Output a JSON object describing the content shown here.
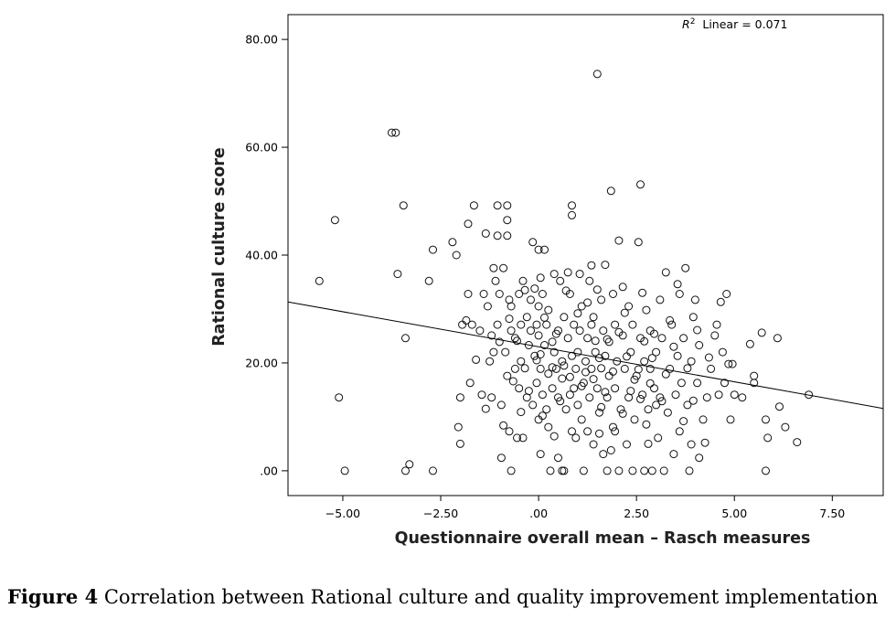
{
  "chart_data": {
    "type": "scatter",
    "title": "",
    "xlabel": "Questionnaire overall mean – Rasch measures",
    "ylabel": "Rational culture score",
    "xlim": [
      -6.4,
      8.8
    ],
    "ylim": [
      -4.6,
      84.6
    ],
    "x_ticks": [
      -5,
      -2.5,
      0,
      2.5,
      5,
      7.5
    ],
    "x_tick_labels": [
      "−5.00",
      "−2.50",
      ".00",
      "2.50",
      "5.00",
      "7.50"
    ],
    "y_ticks": [
      0,
      20,
      40,
      60,
      80
    ],
    "y_tick_labels": [
      ".00",
      "20.00",
      "40.00",
      "60.00",
      "80.00"
    ],
    "grid": false,
    "fit_line": {
      "label_prefix": "R",
      "label_sup": "2",
      "label_rest": "  Linear = 0.071",
      "intercept": 23.0,
      "slope": -1.3
    },
    "points": [
      [
        -5.6,
        35.2
      ],
      [
        -5.2,
        46.5
      ],
      [
        -5.1,
        13.6
      ],
      [
        -4.95,
        0.0
      ],
      [
        -3.75,
        62.7
      ],
      [
        -3.65,
        62.7
      ],
      [
        -3.6,
        36.5
      ],
      [
        -3.45,
        49.2
      ],
      [
        -3.4,
        24.6
      ],
      [
        -3.4,
        0.0
      ],
      [
        -3.3,
        1.2
      ],
      [
        -2.8,
        35.2
      ],
      [
        -2.7,
        41.0
      ],
      [
        -2.7,
        0.0
      ],
      [
        -2.2,
        42.4
      ],
      [
        -2.1,
        40.0
      ],
      [
        -2.05,
        8.1
      ],
      [
        -2.0,
        5.0
      ],
      [
        -2.0,
        13.6
      ],
      [
        -1.95,
        27.1
      ],
      [
        -1.85,
        27.9
      ],
      [
        -1.8,
        45.8
      ],
      [
        -1.8,
        32.8
      ],
      [
        -1.75,
        16.3
      ],
      [
        -1.7,
        27.1
      ],
      [
        -1.65,
        49.2
      ],
      [
        -1.5,
        26.0
      ],
      [
        -1.45,
        14.1
      ],
      [
        -1.4,
        32.8
      ],
      [
        -1.35,
        44.0
      ],
      [
        -1.3,
        30.5
      ],
      [
        -1.25,
        20.3
      ],
      [
        -1.2,
        25.1
      ],
      [
        -1.2,
        13.6
      ],
      [
        -1.15,
        22.0
      ],
      [
        -1.1,
        35.2
      ],
      [
        -1.05,
        27.1
      ],
      [
        -1.05,
        49.2
      ],
      [
        -1.05,
        43.6
      ],
      [
        -1.0,
        23.9
      ],
      [
        -1.0,
        32.8
      ],
      [
        -0.95,
        12.2
      ],
      [
        -0.95,
        2.4
      ],
      [
        -0.9,
        37.6
      ],
      [
        -0.85,
        22.0
      ],
      [
        -0.8,
        17.6
      ],
      [
        -0.8,
        46.5
      ],
      [
        -0.8,
        43.6
      ],
      [
        -0.8,
        49.2
      ],
      [
        -0.75,
        31.7
      ],
      [
        -0.75,
        7.3
      ],
      [
        -0.7,
        26.0
      ],
      [
        -0.7,
        30.5
      ],
      [
        -0.7,
        0.0
      ],
      [
        -0.6,
        18.9
      ],
      [
        -0.6,
        24.6
      ],
      [
        -0.55,
        6.1
      ],
      [
        -0.5,
        32.8
      ],
      [
        -0.5,
        15.3
      ],
      [
        -0.45,
        20.3
      ],
      [
        -0.45,
        27.1
      ],
      [
        -0.4,
        35.2
      ],
      [
        -0.4,
        6.1
      ],
      [
        -0.35,
        19.0
      ],
      [
        -0.3,
        13.6
      ],
      [
        -0.3,
        28.5
      ],
      [
        -0.25,
        23.3
      ],
      [
        -0.2,
        31.7
      ],
      [
        -0.2,
        26.0
      ],
      [
        -0.15,
        12.2
      ],
      [
        -0.15,
        42.4
      ],
      [
        -0.1,
        21.3
      ],
      [
        -0.1,
        33.8
      ],
      [
        -0.05,
        16.3
      ],
      [
        -0.05,
        27.1
      ],
      [
        0.0,
        9.5
      ],
      [
        0.0,
        41.0
      ],
      [
        0.0,
        30.5
      ],
      [
        0.0,
        25.1
      ],
      [
        0.05,
        3.1
      ],
      [
        0.05,
        18.9
      ],
      [
        0.05,
        21.6
      ],
      [
        0.1,
        14.1
      ],
      [
        0.1,
        32.8
      ],
      [
        0.15,
        41.0
      ],
      [
        0.15,
        23.3
      ],
      [
        0.2,
        27.1
      ],
      [
        0.2,
        11.4
      ],
      [
        0.25,
        8.1
      ],
      [
        0.25,
        29.8
      ],
      [
        0.3,
        0.0
      ],
      [
        0.35,
        15.3
      ],
      [
        0.35,
        19.2
      ],
      [
        0.4,
        36.5
      ],
      [
        0.4,
        22.0
      ],
      [
        0.4,
        6.4
      ],
      [
        0.45,
        18.9
      ],
      [
        0.5,
        13.6
      ],
      [
        0.5,
        26.0
      ],
      [
        0.5,
        2.4
      ],
      [
        0.55,
        35.2
      ],
      [
        0.6,
        20.3
      ],
      [
        0.6,
        0.0
      ],
      [
        0.6,
        17.1
      ],
      [
        0.65,
        0.0
      ],
      [
        0.65,
        28.5
      ],
      [
        0.7,
        11.4
      ],
      [
        0.75,
        24.6
      ],
      [
        0.75,
        36.8
      ],
      [
        0.8,
        14.1
      ],
      [
        0.8,
        32.8
      ],
      [
        0.85,
        21.3
      ],
      [
        0.85,
        7.3
      ],
      [
        0.85,
        49.2
      ],
      [
        0.85,
        47.4
      ],
      [
        0.9,
        15.3
      ],
      [
        0.9,
        27.1
      ],
      [
        0.95,
        18.9
      ],
      [
        1.0,
        22.0
      ],
      [
        1.0,
        12.2
      ],
      [
        1.05,
        36.5
      ],
      [
        1.05,
        26.0
      ],
      [
        1.1,
        9.5
      ],
      [
        1.1,
        30.5
      ],
      [
        1.15,
        0.0
      ],
      [
        1.15,
        16.3
      ],
      [
        1.2,
        20.3
      ],
      [
        1.25,
        7.3
      ],
      [
        1.25,
        24.6
      ],
      [
        1.3,
        35.2
      ],
      [
        1.3,
        13.6
      ],
      [
        1.35,
        18.9
      ],
      [
        1.35,
        27.1
      ],
      [
        1.4,
        28.5
      ],
      [
        1.4,
        4.9
      ],
      [
        1.45,
        22.0
      ],
      [
        1.5,
        73.6
      ],
      [
        1.5,
        15.3
      ],
      [
        1.5,
        33.6
      ],
      [
        1.55,
        10.8
      ],
      [
        1.6,
        19.0
      ],
      [
        1.6,
        31.7
      ],
      [
        1.65,
        26.0
      ],
      [
        1.65,
        3.1
      ],
      [
        1.7,
        38.2
      ],
      [
        1.7,
        21.3
      ],
      [
        1.75,
        0.0
      ],
      [
        1.75,
        13.6
      ],
      [
        1.8,
        17.6
      ],
      [
        1.8,
        23.9
      ],
      [
        1.85,
        51.9
      ],
      [
        1.9,
        32.8
      ],
      [
        1.9,
        8.1
      ],
      [
        1.95,
        27.1
      ],
      [
        1.95,
        15.3
      ],
      [
        2.0,
        20.3
      ],
      [
        2.05,
        0.0
      ],
      [
        2.05,
        42.7
      ],
      [
        2.1,
        11.4
      ],
      [
        2.15,
        25.1
      ],
      [
        2.15,
        34.1
      ],
      [
        2.2,
        18.9
      ],
      [
        2.25,
        4.9
      ],
      [
        2.3,
        30.5
      ],
      [
        2.3,
        13.6
      ],
      [
        2.35,
        22.0
      ],
      [
        2.4,
        27.1
      ],
      [
        2.4,
        0.0
      ],
      [
        2.45,
        9.5
      ],
      [
        2.5,
        17.6
      ],
      [
        2.55,
        42.4
      ],
      [
        2.6,
        53.1
      ],
      [
        2.6,
        24.6
      ],
      [
        2.65,
        14.1
      ],
      [
        2.7,
        20.3
      ],
      [
        2.7,
        0.0
      ],
      [
        2.75,
        29.8
      ],
      [
        2.8,
        11.4
      ],
      [
        2.8,
        5.0
      ],
      [
        2.85,
        18.9
      ],
      [
        2.85,
        26.0
      ],
      [
        2.9,
        0.0
      ],
      [
        2.95,
        15.3
      ],
      [
        3.0,
        22.0
      ],
      [
        3.05,
        6.1
      ],
      [
        3.1,
        31.7
      ],
      [
        3.1,
        13.6
      ],
      [
        3.15,
        24.6
      ],
      [
        3.2,
        0.0
      ],
      [
        3.25,
        36.8
      ],
      [
        3.3,
        10.8
      ],
      [
        3.35,
        18.9
      ],
      [
        3.4,
        27.1
      ],
      [
        3.45,
        3.1
      ],
      [
        3.5,
        14.1
      ],
      [
        3.55,
        21.3
      ],
      [
        3.6,
        32.8
      ],
      [
        3.6,
        7.3
      ],
      [
        3.65,
        16.3
      ],
      [
        3.7,
        24.6
      ],
      [
        3.75,
        37.6
      ],
      [
        3.8,
        12.2
      ],
      [
        3.85,
        0.0
      ],
      [
        3.9,
        20.3
      ],
      [
        3.9,
        4.9
      ],
      [
        3.95,
        28.5
      ],
      [
        4.0,
        31.7
      ],
      [
        4.05,
        16.3
      ],
      [
        4.1,
        2.4
      ],
      [
        4.1,
        23.3
      ],
      [
        4.2,
        9.5
      ],
      [
        4.3,
        13.6
      ],
      [
        4.4,
        18.9
      ],
      [
        4.5,
        25.1
      ],
      [
        4.55,
        27.1
      ],
      [
        4.6,
        14.1
      ],
      [
        4.65,
        31.3
      ],
      [
        4.7,
        22.0
      ],
      [
        4.75,
        16.3
      ],
      [
        4.8,
        32.8
      ],
      [
        4.85,
        19.8
      ],
      [
        4.9,
        9.5
      ],
      [
        4.95,
        19.8
      ],
      [
        5.0,
        14.1
      ],
      [
        5.2,
        13.6
      ],
      [
        5.4,
        23.5
      ],
      [
        5.5,
        16.3
      ],
      [
        5.5,
        17.6
      ],
      [
        5.7,
        25.6
      ],
      [
        5.8,
        0.0
      ],
      [
        5.8,
        9.5
      ],
      [
        5.85,
        6.1
      ],
      [
        6.1,
        24.6
      ],
      [
        6.15,
        11.9
      ],
      [
        6.3,
        8.1
      ],
      [
        6.6,
        5.3
      ],
      [
        6.9,
        14.1
      ],
      [
        -1.15,
        37.6
      ],
      [
        -0.55,
        24.1
      ],
      [
        0.1,
        10.2
      ],
      [
        0.7,
        33.4
      ],
      [
        1.2,
        18.3
      ],
      [
        1.95,
        7.3
      ],
      [
        2.45,
        16.9
      ],
      [
        3.0,
        12.2
      ],
      [
        3.55,
        34.6
      ],
      [
        4.35,
        21.0
      ],
      [
        -0.25,
        14.8
      ],
      [
        0.45,
        25.4
      ],
      [
        1.6,
        11.8
      ],
      [
        2.2,
        29.3
      ],
      [
        2.9,
        20.9
      ],
      [
        3.7,
        9.2
      ],
      [
        -1.6,
        20.6
      ],
      [
        -0.9,
        8.4
      ],
      [
        1.35,
        38.1
      ],
      [
        2.65,
        33.0
      ],
      [
        4.05,
        26.1
      ],
      [
        0.25,
        18.0
      ],
      [
        1.0,
        29.2
      ],
      [
        1.75,
        24.4
      ],
      [
        2.35,
        14.8
      ],
      [
        3.25,
        17.9
      ],
      [
        -0.65,
        16.6
      ],
      [
        0.55,
        12.9
      ],
      [
        1.85,
        3.8
      ],
      [
        2.75,
        8.6
      ],
      [
        3.35,
        27.9
      ],
      [
        4.25,
        5.2
      ],
      [
        -0.35,
        33.5
      ],
      [
        0.95,
        6.1
      ],
      [
        1.55,
        20.9
      ],
      [
        2.05,
        25.7
      ],
      [
        3.15,
        12.9
      ],
      [
        3.8,
        19.0
      ],
      [
        -1.35,
        11.5
      ],
      [
        0.15,
        28.4
      ],
      [
        1.25,
        31.2
      ],
      [
        2.55,
        18.8
      ],
      [
        -0.05,
        20.5
      ],
      [
        0.35,
        23.9
      ],
      [
        0.8,
        17.4
      ],
      [
        1.45,
        24.1
      ],
      [
        1.7,
        14.6
      ],
      [
        2.25,
        21.2
      ],
      [
        2.6,
        13.3
      ],
      [
        3.45,
        23.0
      ],
      [
        -0.75,
        28.2
      ],
      [
        0.65,
        19.5
      ],
      [
        1.1,
        15.7
      ],
      [
        1.9,
        18.4
      ],
      [
        2.95,
        25.4
      ],
      [
        -0.45,
        10.9
      ],
      [
        1.55,
        6.9
      ],
      [
        2.15,
        10.6
      ],
      [
        2.85,
        16.2
      ],
      [
        3.95,
        13.0
      ],
      [
        0.05,
        35.8
      ],
      [
        1.4,
        17.0
      ],
      [
        2.7,
        24.0
      ]
    ]
  },
  "caption": {
    "label": "Figure 4",
    "text": " Correlation between Rational culture and quality improvement implementation"
  }
}
